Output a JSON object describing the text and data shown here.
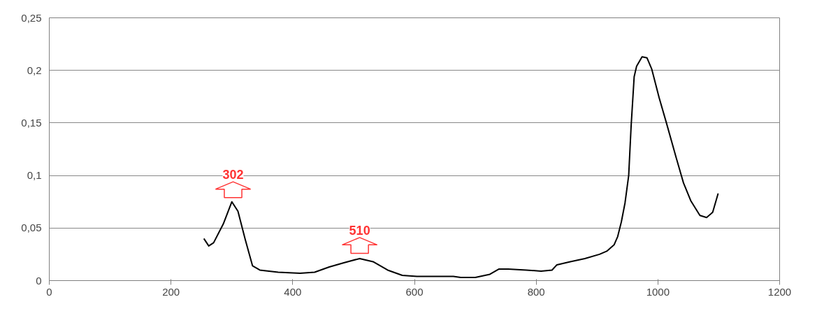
{
  "chart_data": {
    "type": "line",
    "x": [
      254,
      262,
      270,
      286,
      300,
      310,
      322,
      334,
      346,
      376,
      412,
      436,
      460,
      484,
      510,
      532,
      556,
      580,
      604,
      664,
      676,
      700,
      724,
      739,
      754,
      784,
      808,
      826,
      834,
      856,
      880,
      904,
      916,
      928,
      934,
      940,
      946,
      952,
      956,
      961,
      965,
      974,
      982,
      990,
      1002,
      1014,
      1030,
      1042,
      1054,
      1069,
      1080,
      1090,
      1099
    ],
    "series": [
      {
        "color": "#000000",
        "values": [
          0.04,
          0.033,
          0.036,
          0.054,
          0.075,
          0.066,
          0.039,
          0.014,
          0.01,
          0.008,
          0.007,
          0.008,
          0.013,
          0.017,
          0.021,
          0.018,
          0.01,
          0.005,
          0.004,
          0.004,
          0.003,
          0.003,
          0.006,
          0.011,
          0.011,
          0.01,
          0.009,
          0.01,
          0.015,
          0.018,
          0.021,
          0.025,
          0.028,
          0.034,
          0.042,
          0.056,
          0.074,
          0.1,
          0.147,
          0.194,
          0.204,
          0.213,
          0.212,
          0.201,
          0.174,
          0.15,
          0.117,
          0.093,
          0.076,
          0.062,
          0.06,
          0.065,
          0.083
        ]
      }
    ],
    "xlim": [
      0,
      1200
    ],
    "ylim": [
      0,
      0.25
    ],
    "xticks": [
      0,
      200,
      400,
      600,
      800,
      1000,
      1200
    ],
    "yticks": [
      {
        "value": 0,
        "label": "0"
      },
      {
        "value": 0.05,
        "label": "0,05"
      },
      {
        "value": 0.1,
        "label": "0,1"
      },
      {
        "value": 0.15,
        "label": "0,15"
      },
      {
        "value": 0.2,
        "label": "0,2"
      },
      {
        "value": 0.25,
        "label": "0,25"
      }
    ],
    "grid": "y",
    "marker": "none",
    "line_style": "solid",
    "annotations": [
      {
        "text": "302",
        "x": 302,
        "y": 0.075
      },
      {
        "text": "510",
        "x": 510,
        "y": 0.022
      }
    ]
  }
}
